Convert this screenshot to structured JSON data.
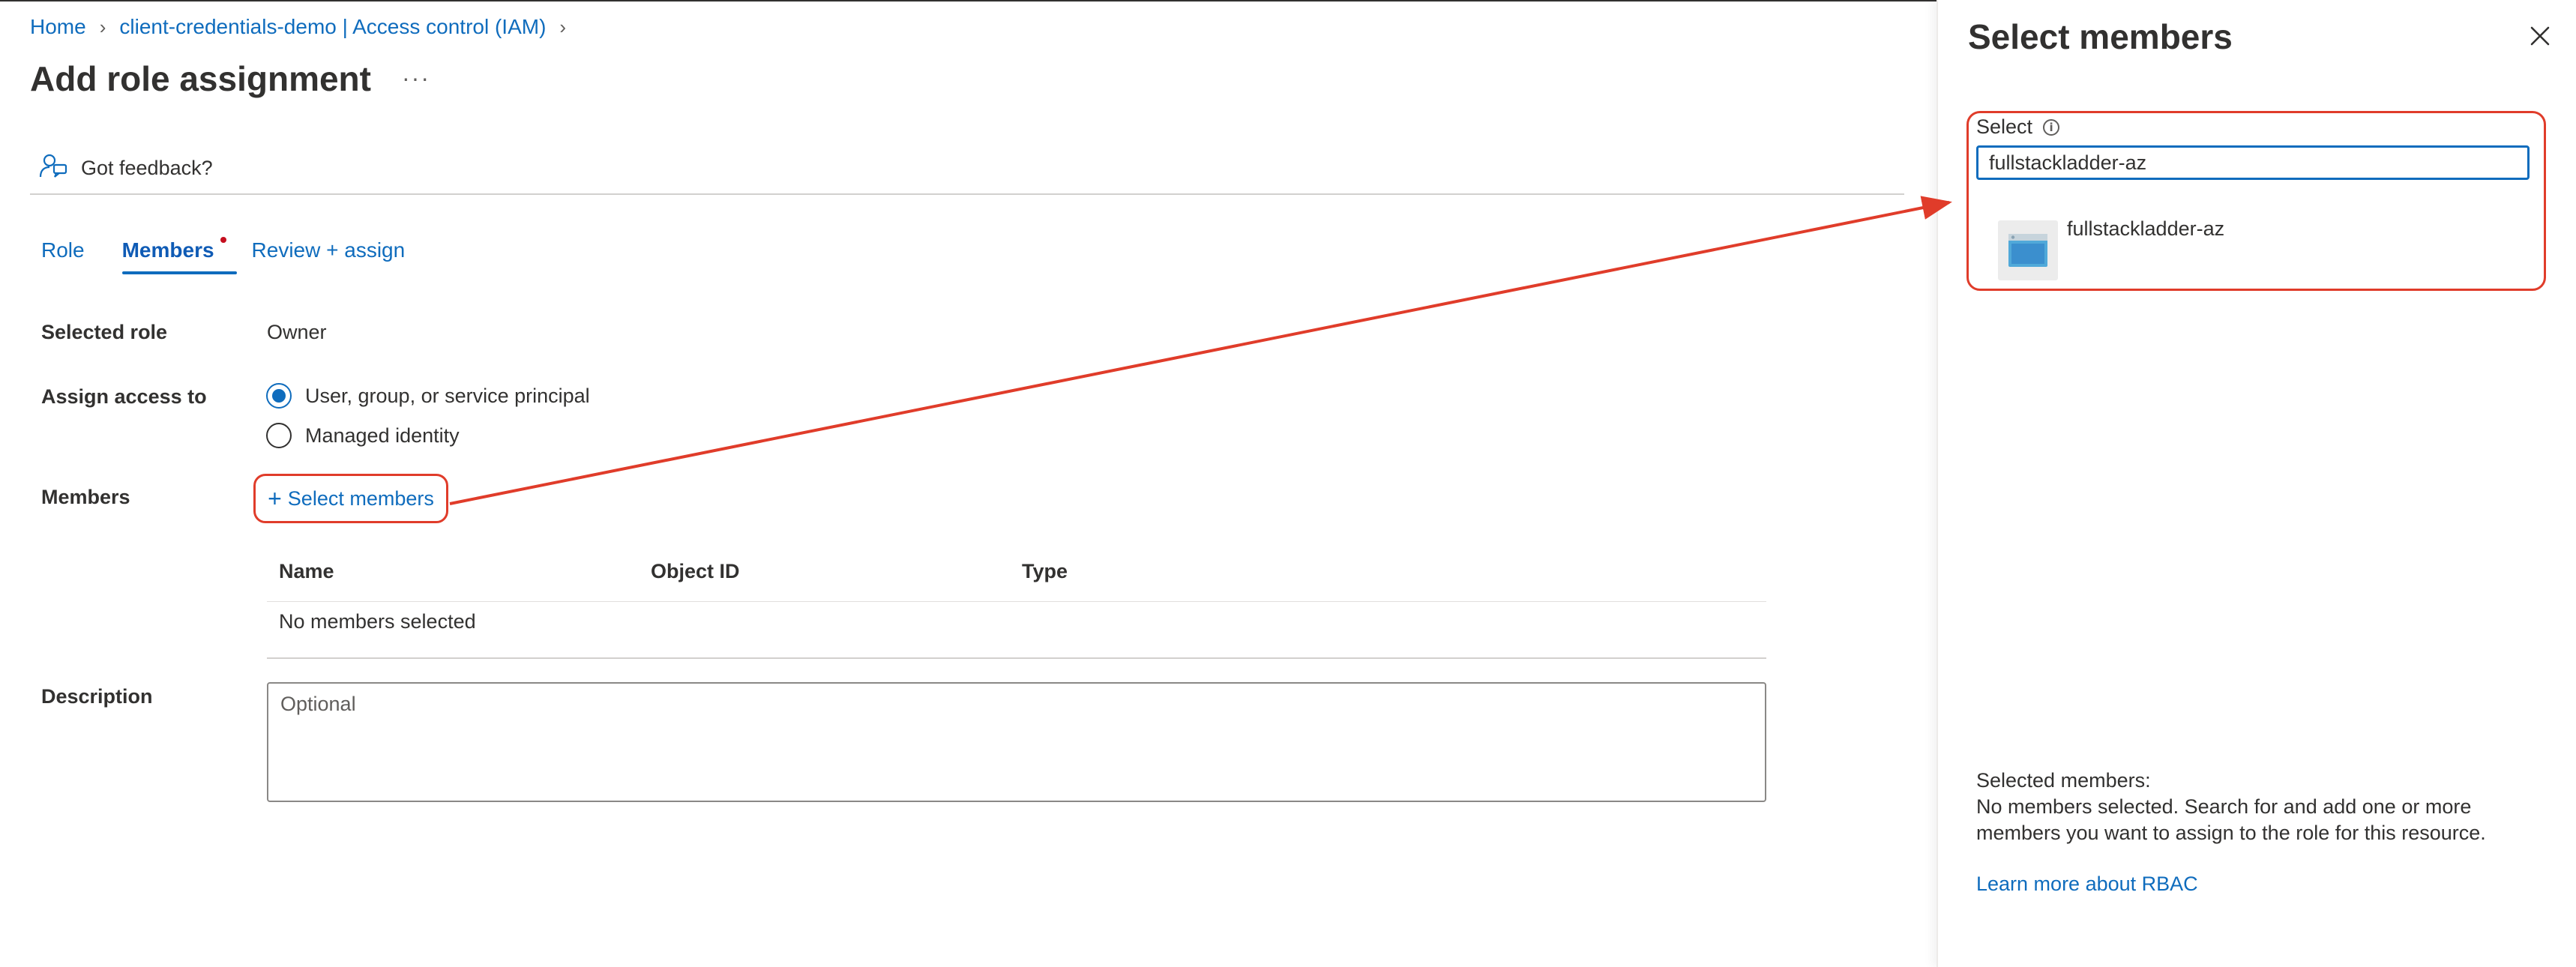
{
  "breadcrumb": {
    "home": "Home",
    "resource": "client-credentials-demo | Access control (IAM)"
  },
  "page": {
    "title": "Add role assignment",
    "more": "···"
  },
  "feedback": {
    "label": "Got feedback?"
  },
  "tabs": [
    {
      "label": "Role",
      "active": false
    },
    {
      "label": "Members",
      "active": true
    },
    {
      "label": "Review + assign",
      "active": false
    }
  ],
  "form": {
    "selected_role_label": "Selected role",
    "selected_role_value": "Owner",
    "assign_access_label": "Assign access to",
    "assign_options": [
      {
        "label": "User, group, or service principal",
        "checked": true
      },
      {
        "label": "Managed identity",
        "checked": false
      }
    ],
    "members_label": "Members",
    "select_members_button": "Select members",
    "table": {
      "columns": [
        "Name",
        "Object ID",
        "Type"
      ],
      "empty_text": "No members selected"
    },
    "description_label": "Description",
    "description_placeholder": "Optional"
  },
  "panel": {
    "title": "Select members",
    "select_label": "Select",
    "search_value": "fullstackladder-az",
    "results": [
      {
        "name": "fullstackladder-az",
        "icon": "app-registration-icon"
      }
    ],
    "selected_members_heading": "Selected members:",
    "selected_members_text": "No members selected. Search for and add one or more members you want to assign to the role for this resource.",
    "learn_more": "Learn more about RBAC"
  },
  "colors": {
    "accent": "#0f6cbd",
    "annotation": "#e03c2a"
  }
}
